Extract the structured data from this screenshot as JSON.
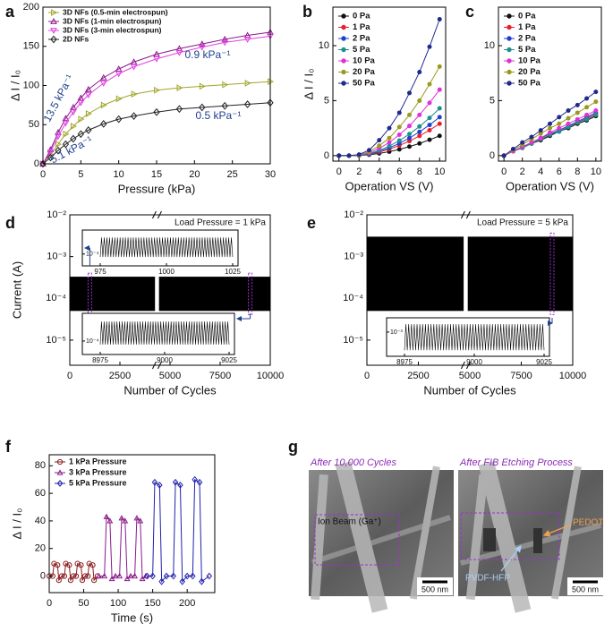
{
  "chart_data": [
    {
      "panel": "a",
      "type": "line",
      "x_label": "Pressure (kPa)",
      "y_label": "Δ I / I₀",
      "x": [
        0,
        1,
        2,
        3,
        4,
        5,
        6,
        8,
        10,
        12,
        15,
        18,
        21,
        24,
        27,
        30
      ],
      "xlim": [
        0,
        30
      ],
      "xticks": [
        0,
        5,
        10,
        15,
        20,
        25,
        30
      ],
      "ylim": [
        0,
        200
      ],
      "yticks": [
        0,
        50,
        100,
        150,
        200
      ],
      "legend": "upper left",
      "marker_fill": "hollow",
      "series": [
        {
          "name": "3D NFs (0.5-min electrospun)",
          "color": "#a3a32a",
          "marker": "triangle-right",
          "values": [
            0,
            12,
            25,
            38,
            48,
            57,
            64,
            75,
            83,
            89,
            94,
            97,
            99,
            101,
            103,
            105
          ]
        },
        {
          "name": "3D NFs (1-min electrospun)",
          "color": "#8b1a8b",
          "marker": "triangle-up",
          "values": [
            0,
            18,
            40,
            58,
            72,
            84,
            95,
            110,
            121,
            130,
            140,
            147,
            153,
            159,
            164,
            168
          ]
        },
        {
          "name": "3D NFs (3-min electrospun)",
          "color": "#e040e0",
          "marker": "triangle-down",
          "values": [
            0,
            15,
            35,
            52,
            66,
            78,
            88,
            103,
            115,
            124,
            134,
            142,
            149,
            155,
            159,
            163
          ]
        },
        {
          "name": "2D NFs",
          "color": "#222222",
          "marker": "diamond",
          "values": [
            0,
            8,
            17,
            25,
            32,
            38,
            43,
            51,
            57,
            61,
            66,
            70,
            72,
            74,
            76,
            78
          ]
        }
      ],
      "annotations": [
        "13.5 kPa⁻¹",
        "0.9 kPa⁻¹",
        "0.5 kPa⁻¹",
        "5.1 kPa⁻¹"
      ],
      "annotation_color": "#1f3f8f"
    },
    {
      "panel": "b",
      "type": "line",
      "x_label": "Operation VS (V)",
      "y_label": "Δ I / I₀",
      "x": [
        0,
        1,
        2,
        3,
        4,
        5,
        6,
        7,
        8,
        9,
        10
      ],
      "xlim": [
        -0.6,
        10.6
      ],
      "xticks": [
        0,
        2,
        4,
        6,
        8,
        10
      ],
      "ylim": [
        -0.5,
        13.5
      ],
      "yticks": [
        0,
        5,
        10
      ],
      "legend": "upper left",
      "marker_fill": "filled",
      "series": [
        {
          "name": "0 Pa",
          "color": "#111111",
          "marker": "circle",
          "values": [
            0,
            0,
            0.01,
            0.08,
            0.2,
            0.36,
            0.57,
            0.82,
            1.11,
            1.44,
            1.8
          ]
        },
        {
          "name": "1 Pa",
          "color": "#e8202a",
          "marker": "circle",
          "values": [
            0,
            0,
            0.02,
            0.13,
            0.32,
            0.59,
            0.92,
            1.32,
            1.79,
            2.31,
            2.9
          ]
        },
        {
          "name": "2 Pa",
          "color": "#1f3fd0",
          "marker": "circle",
          "values": [
            0,
            0,
            0.02,
            0.15,
            0.39,
            0.71,
            1.11,
            1.6,
            2.16,
            2.79,
            3.5
          ]
        },
        {
          "name": "5 Pa",
          "color": "#1f8f8f",
          "marker": "circle",
          "values": [
            0,
            0,
            0.03,
            0.19,
            0.47,
            0.87,
            1.37,
            1.96,
            2.65,
            3.43,
            4.3
          ]
        },
        {
          "name": "10 Pa",
          "color": "#e030d8",
          "marker": "circle",
          "values": [
            0,
            0,
            0.04,
            0.26,
            0.66,
            1.2,
            1.9,
            2.7,
            3.7,
            4.8,
            6.0
          ]
        },
        {
          "name": "20 Pa",
          "color": "#9a9a20",
          "marker": "circle",
          "values": [
            0,
            0,
            0.05,
            0.36,
            0.9,
            1.6,
            2.6,
            3.7,
            5.0,
            6.5,
            8.1
          ]
        },
        {
          "name": "50 Pa",
          "color": "#1f2a8c",
          "marker": "circle",
          "values": [
            0,
            0,
            0.1,
            0.5,
            1.4,
            2.5,
            3.9,
            5.7,
            7.6,
            9.9,
            12.4
          ]
        }
      ]
    },
    {
      "panel": "c",
      "type": "line",
      "x_label": "Operation VS (V)",
      "x": [
        0,
        1,
        2,
        3,
        4,
        5,
        6,
        7,
        8,
        9,
        10
      ],
      "xlim": [
        -0.6,
        10.6
      ],
      "xticks": [
        0,
        2,
        4,
        6,
        8,
        10
      ],
      "ylim": [
        -0.5,
        13.5
      ],
      "yticks": [
        0,
        5,
        10
      ],
      "legend": "upper left",
      "marker_fill": "filled",
      "series": [
        {
          "name": "0 Pa",
          "color": "#111111",
          "marker": "circle",
          "values": [
            0,
            0.4,
            0.7,
            1.1,
            1.4,
            1.8,
            2.2,
            2.5,
            2.9,
            3.2,
            3.6
          ]
        },
        {
          "name": "1 Pa",
          "color": "#e8202a",
          "marker": "circle",
          "values": [
            0,
            0.4,
            0.8,
            1.1,
            1.5,
            1.9,
            2.3,
            2.7,
            3.0,
            3.4,
            3.8
          ]
        },
        {
          "name": "2 Pa",
          "color": "#1f3fd0",
          "marker": "circle",
          "values": [
            0,
            0.4,
            0.8,
            1.2,
            1.6,
            2.0,
            2.3,
            2.7,
            3.1,
            3.5,
            3.9
          ]
        },
        {
          "name": "5 Pa",
          "color": "#1f8f8f",
          "marker": "circle",
          "values": [
            0,
            0.4,
            0.7,
            1.1,
            1.5,
            1.9,
            2.2,
            2.6,
            3.0,
            3.3,
            3.7
          ]
        },
        {
          "name": "10 Pa",
          "color": "#e030d8",
          "marker": "circle",
          "values": [
            0,
            0.4,
            0.8,
            1.2,
            1.6,
            2.1,
            2.5,
            2.9,
            3.3,
            3.7,
            4.1
          ]
        },
        {
          "name": "20 Pa",
          "color": "#9a9a20",
          "marker": "circle",
          "values": [
            0,
            0.5,
            1.0,
            1.5,
            2.0,
            2.5,
            2.9,
            3.4,
            3.9,
            4.4,
            4.9
          ]
        },
        {
          "name": "50 Pa",
          "color": "#1f2a8c",
          "marker": "circle",
          "values": [
            0,
            0.6,
            1.2,
            1.7,
            2.3,
            2.9,
            3.5,
            4.1,
            4.6,
            5.2,
            5.8
          ]
        }
      ]
    },
    {
      "panel": "d",
      "type": "band",
      "yscale": "log",
      "x_label": "Number of Cycles",
      "y_label": "Current (A)",
      "xlim": [
        0,
        10000
      ],
      "xticks": [
        0,
        2500,
        5000,
        7500,
        10000
      ],
      "ylim": [
        2.5e-06,
        0.01
      ],
      "yticks": [
        {
          "value": 0.01,
          "label": "10⁻²"
        },
        {
          "value": 0.001,
          "label": "10⁻³"
        },
        {
          "value": 0.0001,
          "label": "10⁻⁴"
        },
        {
          "value": 1e-05,
          "label": "10⁻⁵"
        }
      ],
      "annotation": "Load Pressure = 1 kPa",
      "color": "#000000",
      "segments": [
        {
          "x": [
            0,
            4250
          ],
          "upper": 0.00033,
          "lower": 5e-05
        },
        {
          "x": [
            4450,
            10000
          ],
          "upper": 0.00033,
          "lower": 5e-05
        }
      ],
      "insets": [
        {
          "xlim": [
            975,
            1025
          ],
          "xticks": [
            975,
            1000,
            1025
          ],
          "ylim": [
            5e-05,
            0.0005
          ],
          "yticks": [
            {
              "value": 0.0001,
              "label": "10⁻⁴"
            }
          ],
          "peak": 0.00035,
          "valley": 8e-05
        },
        {
          "xlim": [
            8975,
            9025
          ],
          "xticks": [
            8975,
            9000,
            9025
          ],
          "ylim": [
            5e-05,
            0.0005
          ],
          "yticks": [
            {
              "value": 0.0001,
              "label": "10⁻⁴"
            }
          ],
          "peak": 0.00035,
          "valley": 8e-05
        }
      ]
    },
    {
      "panel": "e",
      "type": "band",
      "yscale": "log",
      "x_label": "Number of Cycles",
      "xlim": [
        0,
        10000
      ],
      "xticks": [
        0,
        2500,
        5000,
        7500,
        10000
      ],
      "ylim": [
        2.5e-06,
        0.01
      ],
      "yticks": [
        {
          "value": 0.01,
          "label": "10⁻²"
        },
        {
          "value": 0.001,
          "label": "10⁻³"
        },
        {
          "value": 0.0001,
          "label": "10⁻⁴"
        },
        {
          "value": 1e-05,
          "label": "10⁻⁵"
        }
      ],
      "annotation": "Load Pressure = 5 kPa",
      "color": "#000000",
      "segments": [
        {
          "x": [
            0,
            4700
          ],
          "upper": 0.003,
          "lower": 5e-05
        },
        {
          "x": [
            4900,
            10000
          ],
          "upper": 0.003,
          "lower": 5e-05
        }
      ],
      "insets": [
        {
          "xlim": [
            8975,
            9025
          ],
          "xticks": [
            8975,
            9000,
            9025
          ],
          "ylim": [
            5e-05,
            0.005
          ],
          "yticks": [
            {
              "value": 0.001,
              "label": "10⁻³"
            }
          ],
          "peak": 0.003,
          "valley": 8e-05
        }
      ]
    },
    {
      "panel": "f",
      "type": "line",
      "x_label": "Time (s)",
      "y_label": "Δ I / I₀",
      "xlim": [
        0,
        240
      ],
      "xticks": [
        0,
        50,
        100,
        150,
        200
      ],
      "ylim": [
        -12,
        88
      ],
      "yticks": [
        0,
        20,
        40,
        60,
        80
      ],
      "legend": "upper left",
      "marker_fill": "hollow",
      "series": [
        {
          "name": "1 kPa Pressure",
          "color": "#8b1c1c",
          "marker": "circle",
          "x": [
            0,
            5,
            7,
            12,
            14,
            18,
            22,
            24,
            29,
            31,
            35,
            39,
            41,
            46,
            48,
            52,
            56,
            58,
            63,
            65,
            70
          ],
          "values": [
            0,
            0,
            9,
            8,
            -3,
            0,
            0,
            9,
            8,
            -3,
            0,
            0,
            9,
            8,
            -3,
            0,
            0,
            9,
            8,
            -3,
            0
          ]
        },
        {
          "name": "3 kPa Pressure",
          "color": "#8b1a8b",
          "marker": "triangle-up",
          "x": [
            72,
            80,
            83,
            88,
            91,
            96,
            102,
            105,
            110,
            113,
            118,
            124,
            127,
            132,
            135,
            140
          ],
          "values": [
            0,
            0,
            43,
            40,
            -2,
            0,
            0,
            42,
            40,
            -2,
            0,
            0,
            42,
            40,
            -2,
            0
          ]
        },
        {
          "name": "5 kPa Pressure",
          "color": "#2020b0",
          "marker": "diamond",
          "x": [
            142,
            150,
            153,
            160,
            163,
            170,
            180,
            183,
            190,
            193,
            200,
            208,
            211,
            218,
            221,
            232
          ],
          "values": [
            0,
            0,
            68,
            66,
            -4,
            0,
            0,
            68,
            66,
            -4,
            0,
            0,
            70,
            68,
            -4,
            0
          ]
        }
      ]
    }
  ],
  "panel_g": {
    "panel": "g",
    "images": [
      {
        "caption": "After 10,000 Cycles",
        "labels": [
          "Ion Beam (Ga⁺)"
        ],
        "scale_bar": "500 nm"
      },
      {
        "caption": "After FIB Etching Process",
        "labels": [
          "PEDOT",
          "PVDF-HFP"
        ],
        "scale_bar": "500 nm"
      }
    ]
  }
}
